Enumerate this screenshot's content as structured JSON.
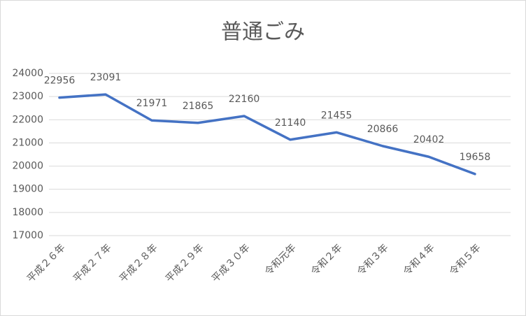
{
  "chart_data": {
    "type": "line",
    "title": "普通ごみ",
    "categories": [
      "平成２６年",
      "平成２７年",
      "平成２８年",
      "平成２９年",
      "平成３０年",
      "令和元年",
      "令和２年",
      "令和３年",
      "令和４年",
      "令和５年"
    ],
    "values": [
      22956,
      23091,
      21971,
      21865,
      22160,
      21140,
      21455,
      20866,
      20402,
      19658
    ],
    "color": "#4472c4",
    "ylim": [
      17000,
      24000
    ],
    "yticks": [
      17000,
      18000,
      19000,
      20000,
      21000,
      22000,
      23000,
      24000
    ],
    "grid": true
  }
}
